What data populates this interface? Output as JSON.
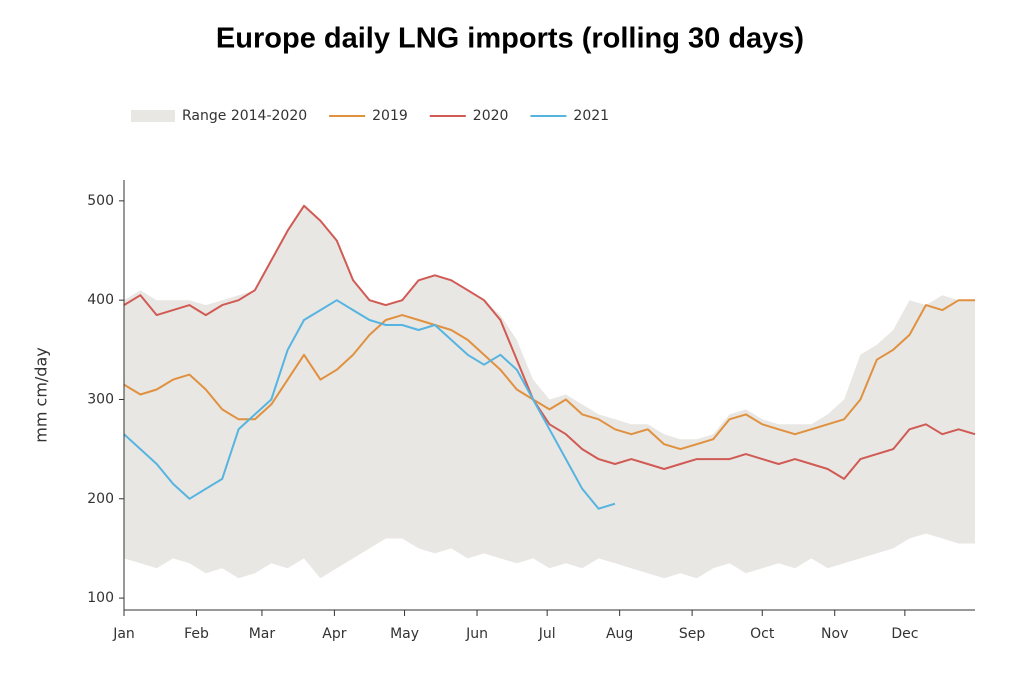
{
  "chart_data": {
    "type": "line",
    "title": "Europe daily LNG imports (rolling 30 days)",
    "y_label": "mm cm/day",
    "x": [
      1,
      8,
      15,
      22,
      29,
      36,
      43,
      50,
      57,
      64,
      71,
      78,
      85,
      92,
      99,
      106,
      113,
      120,
      127,
      134,
      141,
      148,
      155,
      162,
      169,
      176,
      183,
      190,
      197,
      204,
      211,
      218,
      225,
      232,
      239,
      246,
      253,
      260,
      267,
      274,
      281,
      288,
      295,
      302,
      309,
      316,
      323,
      330,
      337,
      344,
      351,
      358,
      365
    ],
    "xlim": [
      1,
      365
    ],
    "xticks": [
      {
        "value": 1,
        "label": "Jan"
      },
      {
        "value": 32,
        "label": "Feb"
      },
      {
        "value": 60,
        "label": "Mar"
      },
      {
        "value": 91,
        "label": "Apr"
      },
      {
        "value": 121,
        "label": "May"
      },
      {
        "value": 152,
        "label": "Jun"
      },
      {
        "value": 182,
        "label": "Jul"
      },
      {
        "value": 213,
        "label": "Aug"
      },
      {
        "value": 244,
        "label": "Sep"
      },
      {
        "value": 274,
        "label": "Oct"
      },
      {
        "value": 305,
        "label": "Nov"
      },
      {
        "value": 335,
        "label": "Dec"
      }
    ],
    "ylim": [
      88,
      521
    ],
    "yticks": [
      100,
      200,
      300,
      400,
      500
    ],
    "grid": false,
    "legend": "top-left",
    "series": [
      {
        "name": "Range 2014-2020",
        "type": "range",
        "color": "#e9e7e4",
        "upper": [
          400,
          410,
          400,
          400,
          400,
          395,
          400,
          405,
          410,
          440,
          470,
          495,
          480,
          460,
          420,
          400,
          395,
          400,
          420,
          425,
          420,
          410,
          400,
          385,
          360,
          320,
          300,
          305,
          295,
          285,
          280,
          275,
          275,
          265,
          260,
          260,
          265,
          285,
          290,
          280,
          275,
          275,
          275,
          285,
          300,
          345,
          355,
          370,
          400,
          395,
          405,
          400,
          400
        ],
        "lower": [
          140,
          135,
          130,
          140,
          135,
          125,
          130,
          120,
          125,
          135,
          130,
          140,
          120,
          130,
          140,
          150,
          160,
          160,
          150,
          145,
          150,
          140,
          145,
          140,
          135,
          140,
          130,
          135,
          130,
          140,
          135,
          130,
          125,
          120,
          125,
          120,
          130,
          135,
          125,
          130,
          135,
          130,
          140,
          130,
          135,
          140,
          145,
          150,
          160,
          165,
          160,
          155,
          155
        ]
      },
      {
        "name": "2019",
        "color": "#e0913f",
        "values": [
          315,
          305,
          310,
          320,
          325,
          310,
          290,
          280,
          280,
          295,
          320,
          345,
          320,
          330,
          345,
          365,
          380,
          385,
          380,
          375,
          370,
          360,
          345,
          330,
          310,
          300,
          290,
          300,
          285,
          280,
          270,
          265,
          270,
          255,
          250,
          255,
          260,
          280,
          285,
          275,
          270,
          265,
          270,
          275,
          280,
          300,
          340,
          350,
          365,
          395,
          390,
          400,
          400
        ]
      },
      {
        "name": "2020",
        "color": "#d05a54",
        "values": [
          395,
          405,
          385,
          390,
          395,
          385,
          395,
          400,
          410,
          440,
          470,
          495,
          480,
          460,
          420,
          400,
          395,
          400,
          420,
          425,
          420,
          410,
          400,
          380,
          340,
          300,
          275,
          265,
          250,
          240,
          235,
          240,
          235,
          230,
          235,
          240,
          240,
          240,
          245,
          240,
          235,
          240,
          235,
          230,
          220,
          240,
          245,
          250,
          270,
          275,
          265,
          270,
          265
        ]
      },
      {
        "name": "2021",
        "color": "#55b4e0",
        "values": [
          265,
          250,
          235,
          215,
          200,
          210,
          220,
          270,
          285,
          300,
          350,
          380,
          390,
          400,
          390,
          380,
          375,
          375,
          370,
          375,
          360,
          345,
          335,
          345,
          330,
          300,
          270,
          240,
          210,
          190,
          195,
          null,
          null,
          null,
          null,
          null,
          null,
          null,
          null,
          null,
          null,
          null,
          null,
          null,
          null,
          null,
          null,
          null,
          null,
          null,
          null,
          null,
          null
        ]
      }
    ]
  }
}
